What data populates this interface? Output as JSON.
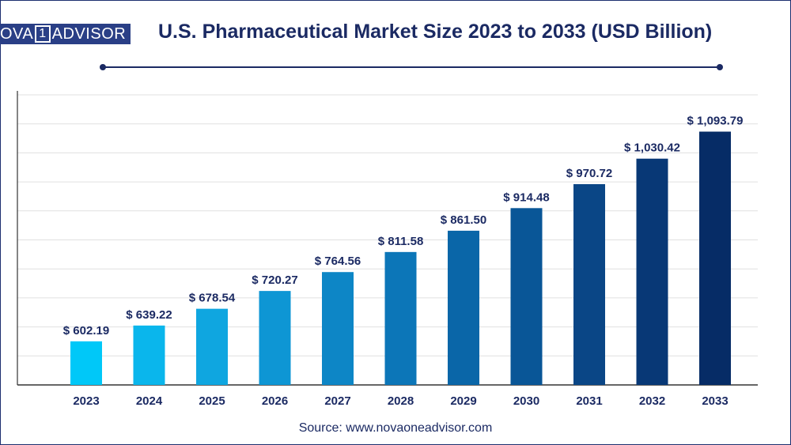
{
  "header": {
    "logo_left": "OVA",
    "logo_box": "1",
    "logo_right": "ADVISOR",
    "title": "U.S. Pharmaceutical Market Size 2023 to 2033 (USD Billion)"
  },
  "footer": {
    "source": "Source: www.novaoneadvisor.com"
  },
  "chart_data": {
    "type": "bar",
    "title": "U.S. Pharmaceutical Market Size 2023 to 2033 (USD Billion)",
    "categories": [
      "2023",
      "2024",
      "2025",
      "2026",
      "2027",
      "2028",
      "2029",
      "2030",
      "2031",
      "2032",
      "2033"
    ],
    "values": [
      602.19,
      639.22,
      678.54,
      720.27,
      764.56,
      811.58,
      861.5,
      914.48,
      970.72,
      1030.42,
      1093.79
    ],
    "labels": [
      "$ 602.19",
      "$ 639.22",
      "$ 678.54",
      "$ 720.27",
      "$ 764.56",
      "$ 811.58",
      "$ 861.50",
      "$ 914.48",
      "$ 970.72",
      "$ 1,030.42",
      "$ 1,093.79"
    ],
    "colors": [
      "#00c8f8",
      "#0ab6ec",
      "#0fa6e0",
      "#0e96d4",
      "#0d86c6",
      "#0c76b8",
      "#0a66a8",
      "#095697",
      "#0a4686",
      "#083876",
      "#062c66"
    ],
    "xlabel": "",
    "ylabel": "",
    "ylim": [
      500,
      1180
    ],
    "grid": true,
    "legend": "none"
  }
}
